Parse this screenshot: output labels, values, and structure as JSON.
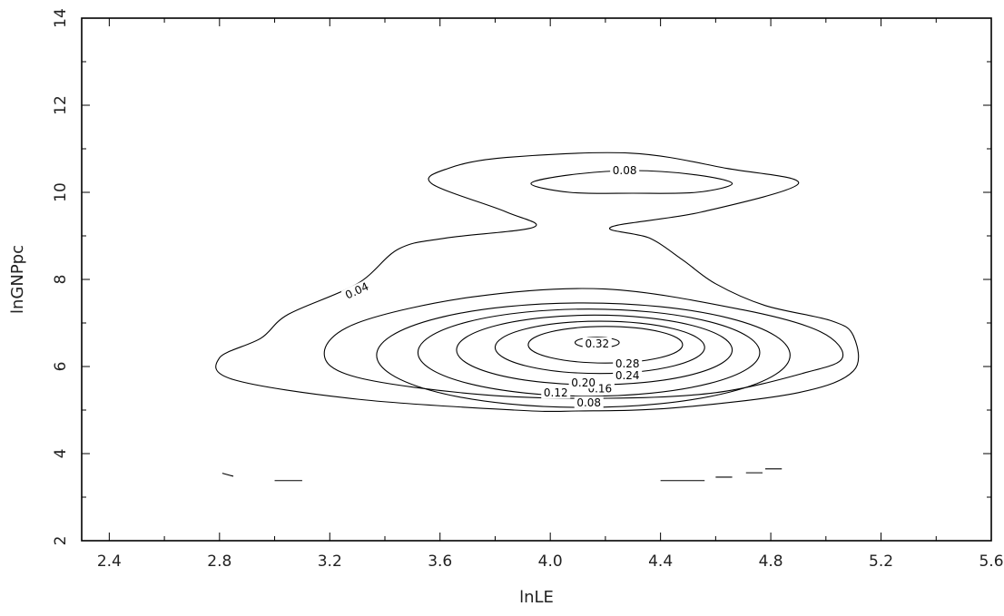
{
  "chart_data": {
    "type": "contour",
    "xlabel": "lnLE",
    "ylabel": "lnGNPpc",
    "xlim": [
      2.3,
      5.6
    ],
    "ylim": [
      2,
      14
    ],
    "x_ticks": [
      "2.4",
      "2.8",
      "3.2",
      "3.6",
      "4.0",
      "4.4",
      "4.8",
      "5.2",
      "5.6"
    ],
    "y_ticks": [
      "2",
      "4",
      "6",
      "8",
      "10",
      "12",
      "14"
    ],
    "grid": false,
    "contour_levels": [
      "0.04",
      "0.08",
      "0.12",
      "0.16",
      "0.20",
      "0.24",
      "0.28",
      "0.32"
    ],
    "contours": [
      {
        "level": "0.04",
        "label": "0.04",
        "points": [
          [
            4.29,
            10.9
          ],
          [
            3.84,
            10.8
          ],
          [
            3.63,
            10.55
          ],
          [
            3.57,
            10.2
          ],
          [
            3.84,
            9.55
          ],
          [
            3.94,
            9.2
          ],
          [
            3.62,
            8.95
          ],
          [
            3.45,
            8.7
          ],
          [
            3.3,
            7.9
          ],
          [
            3.05,
            7.2
          ],
          [
            2.95,
            6.65
          ],
          [
            2.8,
            6.2
          ],
          [
            2.85,
            5.7
          ],
          [
            3.3,
            5.25
          ],
          [
            3.87,
            5.0
          ],
          [
            4.1,
            4.98
          ],
          [
            4.45,
            5.05
          ],
          [
            4.9,
            5.4
          ],
          [
            5.1,
            5.9
          ],
          [
            5.1,
            6.7
          ],
          [
            5.02,
            7.05
          ],
          [
            4.78,
            7.4
          ],
          [
            4.6,
            7.9
          ],
          [
            4.48,
            8.45
          ],
          [
            4.36,
            8.95
          ],
          [
            4.22,
            9.2
          ],
          [
            4.55,
            9.55
          ],
          [
            4.9,
            10.2
          ],
          [
            4.64,
            10.55
          ],
          [
            4.29,
            10.9
          ]
        ]
      },
      {
        "level": "0.08",
        "label": "0.08",
        "points": [
          [
            4.3,
            10.5
          ],
          [
            4.07,
            10.4
          ],
          [
            3.93,
            10.2
          ],
          [
            4.07,
            10.0
          ],
          [
            4.3,
            9.98
          ],
          [
            4.53,
            10.0
          ],
          [
            4.66,
            10.2
          ],
          [
            4.53,
            10.4
          ],
          [
            4.3,
            10.5
          ]
        ]
      },
      {
        "level": "0.08",
        "label": "0.08",
        "points": [
          [
            4.2,
            7.78
          ],
          [
            3.72,
            7.6
          ],
          [
            3.3,
            7.0
          ],
          [
            3.18,
            6.3
          ],
          [
            3.3,
            5.75
          ],
          [
            3.76,
            5.35
          ],
          [
            4.21,
            5.27
          ],
          [
            4.6,
            5.4
          ],
          [
            4.92,
            5.85
          ],
          [
            5.06,
            6.2
          ],
          [
            4.98,
            6.8
          ],
          [
            4.7,
            7.3
          ],
          [
            4.2,
            7.78
          ]
        ]
      },
      {
        "level": "0.12",
        "label": "0.12",
        "cx": 4.12,
        "cy": 6.26,
        "rx": 0.75,
        "ry": 1.2
      },
      {
        "level": "0.16",
        "label": "0.16",
        "cx": 4.14,
        "cy": 6.32,
        "rx": 0.62,
        "ry": 1.0
      },
      {
        "level": "0.20",
        "label": "0.20",
        "cx": 4.16,
        "cy": 6.38,
        "rx": 0.5,
        "ry": 0.8
      },
      {
        "level": "0.24",
        "label": "0.24",
        "cx": 4.18,
        "cy": 6.44,
        "rx": 0.38,
        "ry": 0.6
      },
      {
        "level": "0.28",
        "label": "0.28",
        "cx": 4.2,
        "cy": 6.5,
        "rx": 0.28,
        "ry": 0.42
      },
      {
        "level": "0.32",
        "label": "0.32",
        "cx": 4.17,
        "cy": 6.55,
        "rx": 0.08,
        "ry": 0.12
      }
    ],
    "fragments": [
      [
        [
          2.81,
          3.55
        ],
        [
          2.85,
          3.48
        ]
      ],
      [
        [
          3.0,
          3.38
        ],
        [
          3.1,
          3.38
        ]
      ],
      [
        [
          4.4,
          3.38
        ],
        [
          4.56,
          3.38
        ]
      ],
      [
        [
          4.6,
          3.46
        ],
        [
          4.66,
          3.46
        ]
      ],
      [
        [
          4.71,
          3.56
        ],
        [
          4.77,
          3.56
        ]
      ],
      [
        [
          4.78,
          3.65
        ],
        [
          4.84,
          3.65
        ]
      ]
    ]
  }
}
